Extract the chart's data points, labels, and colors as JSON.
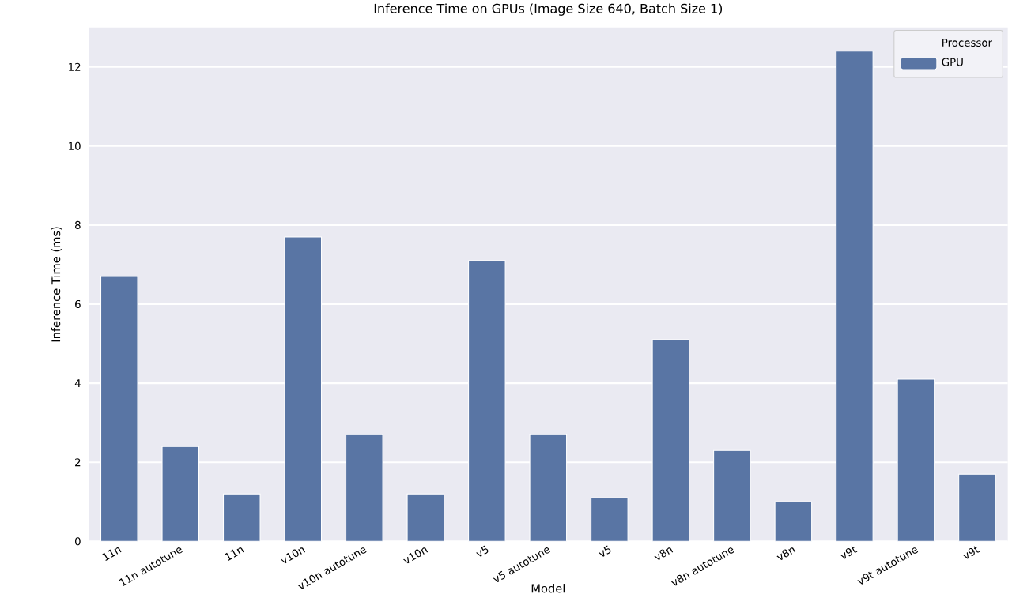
{
  "chart_data": {
    "type": "bar",
    "title": "Inference Time on GPUs (Image Size 640, Batch Size 1)",
    "xlabel": "Model",
    "ylabel": "Inference Time (ms)",
    "legend_title": "Processor",
    "categories": [
      "11n",
      "11n autotune",
      "11n",
      "v10n",
      "v10n autotune",
      "v10n",
      "v5",
      "v5 autotune",
      "v5",
      "v8n",
      "v8n autotune",
      "v8n",
      "v9t",
      "v9t autotune",
      "v9t"
    ],
    "series": [
      {
        "name": "GPU",
        "color": "#5975a4",
        "values": [
          6.7,
          2.4,
          1.2,
          7.7,
          2.7,
          1.2,
          7.1,
          2.7,
          1.1,
          5.1,
          2.3,
          1.0,
          12.4,
          4.1,
          1.7
        ]
      }
    ],
    "ylim": [
      0,
      13
    ],
    "yticks": [
      0,
      2,
      4,
      6,
      8,
      10,
      12
    ],
    "grid": "y",
    "legend": "top right"
  }
}
